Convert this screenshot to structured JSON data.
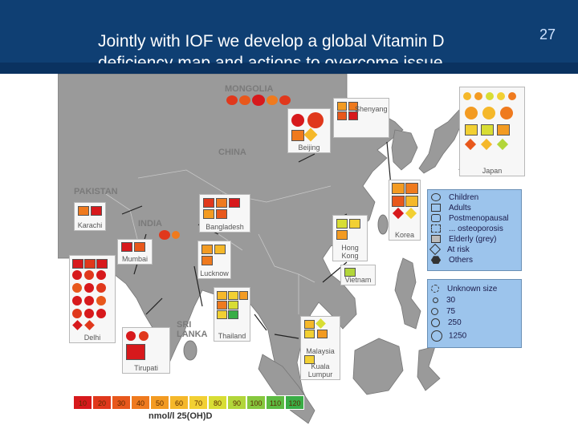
{
  "slide": {
    "title_line1": "Jointly with IOF we develop a global Vitamin D",
    "title_line2": "deficiency map and actions to overcome issue",
    "number": "27"
  },
  "map_labels": {
    "mongolia": "MONGOLIA",
    "china": "CHINA",
    "pakistan": "PAKISTAN",
    "india": "INDIA",
    "sri_lanka_1": "SRI",
    "sri_lanka_2": "LANKA"
  },
  "city_boxes": {
    "shenyang": "Shenyang",
    "beijing": "Beijing",
    "bangladesh": "Bangladesh",
    "karachi": "Karachi",
    "mumbai": "Mumbai",
    "lucknow": "Lucknow",
    "hong_kong_1": "Hong",
    "hong_kong_2": "Kong",
    "korea": "Korea",
    "vietnam": "Vietnam",
    "delhi": "Delhi",
    "tirupati": "Tirupati",
    "thailand": "Thailand",
    "malaysia": "Malaysia",
    "kuala_lumpur_1": "Kuala",
    "kuala_lumpur_2": "Lumpur",
    "japan": "Japan"
  },
  "legend_groups": {
    "title": "",
    "items": [
      "Children",
      "Adults",
      "Postmenopausal",
      "... osteoporosis",
      "Elderly (grey)",
      "At risk",
      "Others"
    ]
  },
  "legend_size": {
    "items": [
      "Unknown size",
      "30",
      "75",
      "250",
      "1250"
    ]
  },
  "color_scale": {
    "values": [
      "10",
      "20",
      "30",
      "40",
      "50",
      "60",
      "70",
      "80",
      "90",
      "100",
      "110",
      "120"
    ],
    "colors": [
      "#d7191c",
      "#e0381c",
      "#e8581c",
      "#ef7a1e",
      "#f39b22",
      "#f5b82a",
      "#f2d033",
      "#d8dd34",
      "#b2d63a",
      "#86c83e",
      "#5cbb42",
      "#39ad46"
    ],
    "unit_label": "nmol/l 25(OH)D"
  },
  "colors": {
    "header": "#0f3f73",
    "legend_bg": "#9cc4ec"
  }
}
